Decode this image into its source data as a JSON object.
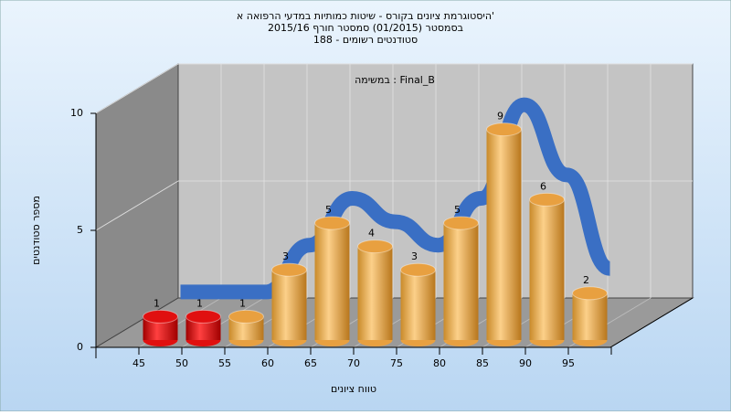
{
  "chart_data": {
    "type": "bar",
    "title": [
      "היסטוגרמת ציונים בקורס - שיטות כמותיות במדעי הרפואה א'",
      "בסמסטר  (01/2015)  סמסטר חורף 2015/16",
      "סטודנטים רשומים - 188"
    ],
    "annotation": "במשימה : Final_B",
    "y_label": "מספר סטודנטים",
    "x_label": "טווח ציונים",
    "categories": [
      "45",
      "50",
      "55",
      "60",
      "65",
      "70",
      "75",
      "80",
      "85",
      "90",
      "95"
    ],
    "values": [
      1,
      1,
      1,
      3,
      5,
      4,
      3,
      5,
      9,
      6,
      2
    ],
    "colors": [
      "#e01010",
      "#e01010",
      "#e8a040",
      "#e8a040",
      "#e8a040",
      "#e8a040",
      "#e8a040",
      "#e8a040",
      "#e8a040",
      "#e8a040",
      "#e8a040"
    ],
    "line_color": "#3a6fc4",
    "ylim": [
      0,
      10
    ],
    "yticks": [
      0,
      5,
      10
    ],
    "grid": true
  }
}
